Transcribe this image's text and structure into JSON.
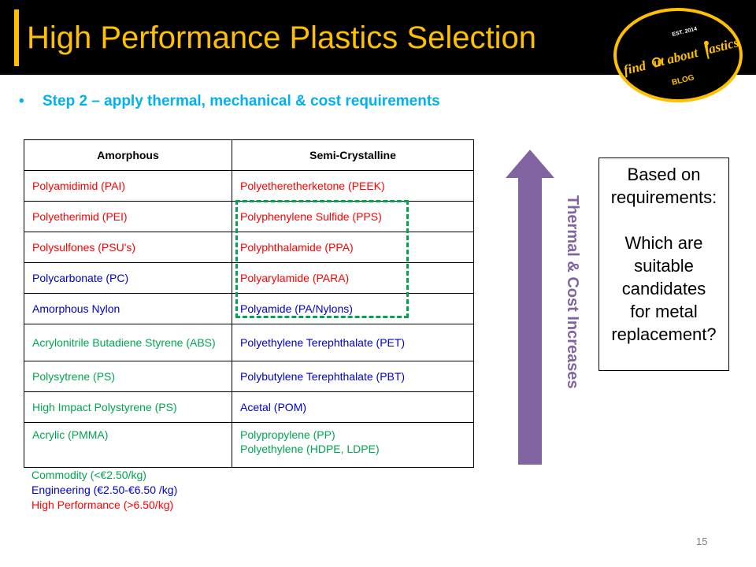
{
  "header": {
    "title": "High Performance Plastics Selection",
    "logo": {
      "est": "EST. 2014",
      "name_part1": "find",
      "name_part2": "ut about",
      "name_part3": "lastics",
      "sub": "BLOG"
    }
  },
  "bullet": {
    "marker": "•",
    "text": "Step 2 – apply thermal, mechanical & cost requirements"
  },
  "table": {
    "headers": [
      "Amorphous",
      "Semi-Crystalline"
    ],
    "rows": [
      {
        "left": "Polyamidimid (PAI)",
        "right": "Polyetheretherketone  (PEEK)",
        "left_color": "red",
        "right_color": "red"
      },
      {
        "left": "Polyetherimid (PEI)",
        "right": "Polyphenylene  Sulfide (PPS)",
        "left_color": "red",
        "right_color": "red"
      },
      {
        "left": "Polysulfones  (PSU's)",
        "right": "Polyphthalamide  (PPA)",
        "left_color": "red",
        "right_color": "red"
      },
      {
        "left": "Polycarbonate (PC)",
        "right": "Polyarylamide (PARA)",
        "left_color": "blue",
        "right_color": "red"
      },
      {
        "left": "Amorphous Nylon",
        "right": "Polyamide (PA/Nylons)",
        "left_color": "blue",
        "right_color": "blue"
      },
      {
        "left": "Acrylonitrile  Butadiene Styrene (ABS)",
        "right": "Polyethylene  Terephthalate (PET)",
        "left_color": "green",
        "right_color": "blue"
      },
      {
        "left": "Polysytrene  (PS)",
        "right": "Polybutylene  Terephthalate (PBT)",
        "left_color": "green",
        "right_color": "blue"
      },
      {
        "left": "High Impact  Polystyrene  (PS)",
        "right": "Acetal (POM)",
        "left_color": "green",
        "right_color": "blue"
      },
      {
        "left": "Acrylic (PMMA)",
        "right": "Polypropylene  (PP)",
        "right2": "Polyethylene  (HDPE, LDPE)",
        "left_color": "green",
        "right_color": "green"
      }
    ]
  },
  "legend": {
    "commodity": "Commodity (<€2.50/kg)",
    "engineering": "Engineering (€2.50-€6.50 /kg)",
    "high_performance": "High Performance (>6.50/kg)"
  },
  "arrow_label": "Thermal & Cost Increases",
  "question_box": {
    "line1": "Based on",
    "line2": "requirements:",
    "line3": "Which are",
    "line4": "suitable",
    "line5": "candidates",
    "line6": "for metal",
    "line7": "replacement?"
  },
  "page_number": "15",
  "colors": {
    "title": "#ffc000",
    "bullet": "#00b0f0",
    "high_performance": "#ff0000",
    "engineering": "#0000cc",
    "commodity": "#00a550",
    "arrow": "#8064a2"
  }
}
